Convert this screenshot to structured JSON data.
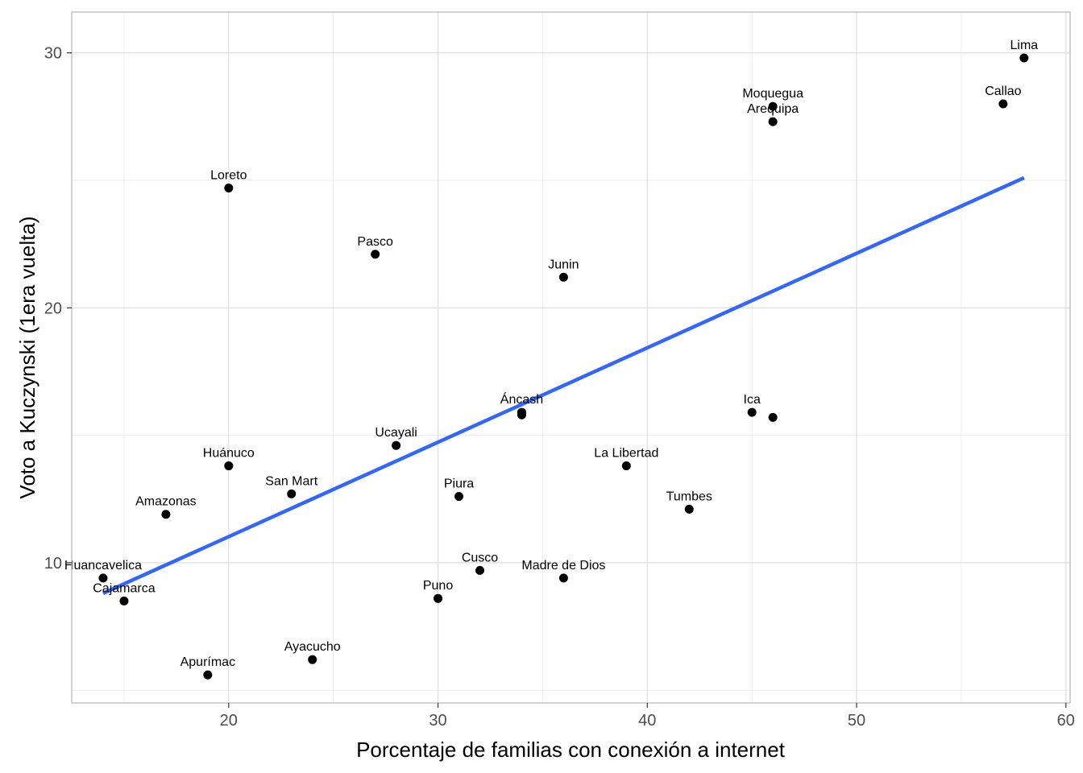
{
  "chart_data": {
    "type": "scatter",
    "xlabel": "Porcentaje de familias con conexión a internet",
    "ylabel": "Voto a Kuczynski (1era vuelta)",
    "xlim": [
      12.5,
      60.2
    ],
    "ylim": [
      4.5,
      31.6
    ],
    "x_ticks": [
      20,
      30,
      40,
      50,
      60
    ],
    "y_ticks": [
      10,
      20,
      30
    ],
    "grid": true,
    "points": [
      {
        "label": "Lima",
        "x": 58,
        "y": 29.8
      },
      {
        "label": "Callao",
        "x": 57,
        "y": 28.0
      },
      {
        "label": "Moquegua",
        "x": 46,
        "y": 27.9
      },
      {
        "label": "Arequipa",
        "x": 46,
        "y": 27.3
      },
      {
        "label": "Loreto",
        "x": 20,
        "y": 24.7
      },
      {
        "label": "Pasco",
        "x": 27,
        "y": 22.1
      },
      {
        "label": "Junin",
        "x": 36,
        "y": 21.2
      },
      {
        "label": "Áncash",
        "x": 34,
        "y": 15.9
      },
      {
        "label": "",
        "x": 34,
        "y": 15.8
      },
      {
        "label": "Ica",
        "x": 45,
        "y": 15.9
      },
      {
        "label": "",
        "x": 46,
        "y": 15.7
      },
      {
        "label": "Ucayali",
        "x": 28,
        "y": 14.6
      },
      {
        "label": "Huánuco",
        "x": 20,
        "y": 13.8
      },
      {
        "label": "La Libertad",
        "x": 39,
        "y": 13.8
      },
      {
        "label": "San Mart",
        "x": 23,
        "y": 12.7
      },
      {
        "label": "Piura",
        "x": 31,
        "y": 12.6
      },
      {
        "label": "Tumbes",
        "x": 42,
        "y": 12.1
      },
      {
        "label": "Amazonas",
        "x": 17,
        "y": 11.9
      },
      {
        "label": "Cusco",
        "x": 32,
        "y": 9.7
      },
      {
        "label": "Huancavelica",
        "x": 14,
        "y": 9.4
      },
      {
        "label": "Madre de Dios",
        "x": 36,
        "y": 9.4
      },
      {
        "label": "Cajamarca",
        "x": 15,
        "y": 8.5
      },
      {
        "label": "Puno",
        "x": 30,
        "y": 8.6
      },
      {
        "label": "Ayacucho",
        "x": 24,
        "y": 6.2
      },
      {
        "label": "Apurímac",
        "x": 19,
        "y": 5.6
      }
    ],
    "trend_line": {
      "x": [
        14,
        58
      ],
      "y": [
        8.8,
        25.1
      ]
    },
    "colors": {
      "points": "#000000",
      "trend": "#3366FF",
      "grid": "#ebebeb",
      "panel_border": "#b3b3b3"
    }
  }
}
